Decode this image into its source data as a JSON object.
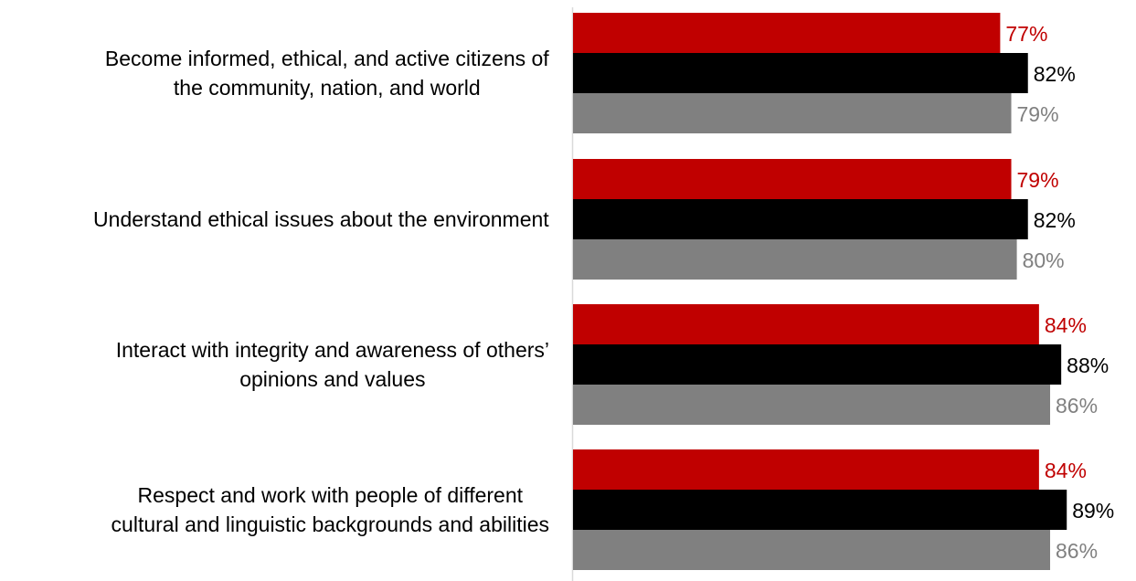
{
  "chart_data": {
    "type": "bar",
    "orientation": "horizontal",
    "categories": [
      [
        "Become informed, ethical, and active citizens of",
        "the community, nation, and world"
      ],
      [
        "Understand ethical issues about the environment"
      ],
      [
        "Interact with integrity and awareness of others’",
        "opinions and values"
      ],
      [
        "Respect and work with people of different",
        "cultural and linguistic backgrounds and abilities"
      ]
    ],
    "series": [
      {
        "values": [
          77,
          79,
          84,
          84
        ],
        "labels": [
          "77%",
          "79%",
          "84%",
          "84%"
        ],
        "color": "#c00000"
      },
      {
        "values": [
          82,
          82,
          88,
          89
        ],
        "labels": [
          "82%",
          "82%",
          "88%",
          "89%"
        ],
        "color": "#000000"
      },
      {
        "values": [
          79,
          80,
          86,
          86
        ],
        "labels": [
          "79%",
          "80%",
          "86%",
          "86%"
        ],
        "color": "#808080"
      }
    ],
    "xlim": [
      0,
      100
    ],
    "grid": false,
    "legend": "none"
  }
}
